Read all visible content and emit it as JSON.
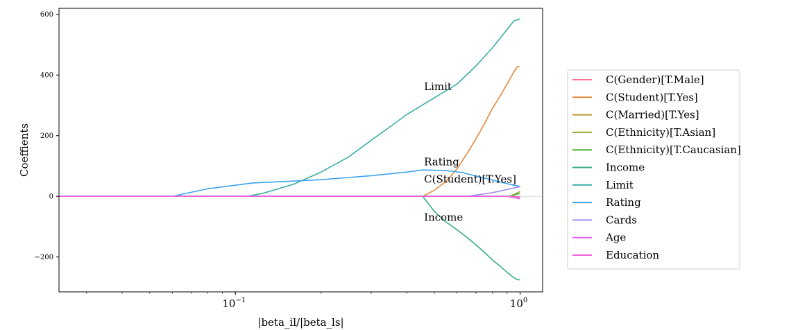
{
  "chart_data": {
    "type": "line",
    "xscale": "log",
    "xlabel": "|beta_il/|beta_ls|",
    "ylabel": "Coeffients",
    "xlim": [
      0.024,
      1.2
    ],
    "ylim": [
      -315,
      620
    ],
    "yticks": [
      -200,
      0,
      200,
      400,
      600
    ],
    "yticklabels": [
      "−200",
      "0",
      "200",
      "400",
      "600"
    ],
    "xticks": [
      0.1,
      1
    ],
    "xticklabels": [
      {
        "base": "10",
        "exp": "−1"
      },
      {
        "base": "10",
        "exp": "0"
      }
    ],
    "zero_line": true,
    "legend_position": "outside-right",
    "annotations": [
      {
        "text": "Limit",
        "x": 0.46,
        "y": 350
      },
      {
        "text": "Rating",
        "x": 0.46,
        "y": 102
      },
      {
        "text": "C(Student)[T.Yes]",
        "x": 0.46,
        "y": 45
      },
      {
        "text": "Income",
        "x": 0.46,
        "y": -81
      }
    ],
    "series": [
      {
        "name": "C(Gender)[T.Male]",
        "color": "#f77189",
        "points": [
          [
            0.024,
            0
          ],
          [
            0.9,
            0
          ],
          [
            1.0,
            -2
          ]
        ]
      },
      {
        "name": "C(Student)[T.Yes]",
        "color": "#e5873a",
        "points": [
          [
            0.024,
            0
          ],
          [
            0.455,
            0
          ],
          [
            0.5,
            20
          ],
          [
            0.55,
            50
          ],
          [
            0.6,
            90
          ],
          [
            0.65,
            140
          ],
          [
            0.7,
            190
          ],
          [
            0.75,
            240
          ],
          [
            0.8,
            290
          ],
          [
            0.85,
            330
          ],
          [
            0.9,
            370
          ],
          [
            0.95,
            410
          ],
          [
            0.98,
            428
          ],
          [
            1.0,
            428
          ]
        ]
      },
      {
        "name": "C(Married)[T.Yes]",
        "color": "#bb9832",
        "points": [
          [
            0.024,
            0
          ],
          [
            0.9,
            0
          ],
          [
            1.0,
            -5
          ]
        ]
      },
      {
        "name": "C(Ethnicity)[T.Asian]",
        "color": "#97a431",
        "points": [
          [
            0.024,
            0
          ],
          [
            0.92,
            0
          ],
          [
            1.0,
            16
          ]
        ]
      },
      {
        "name": "C(Ethnicity)[T.Caucasian]",
        "color": "#4fb031",
        "points": [
          [
            0.024,
            0
          ],
          [
            0.92,
            0
          ],
          [
            1.0,
            10
          ]
        ]
      },
      {
        "name": "Income",
        "color": "#36ad8a",
        "points": [
          [
            0.024,
            0
          ],
          [
            0.455,
            0
          ],
          [
            0.5,
            -50
          ],
          [
            0.55,
            -85
          ],
          [
            0.6,
            -110
          ],
          [
            0.65,
            -135
          ],
          [
            0.7,
            -160
          ],
          [
            0.75,
            -185
          ],
          [
            0.8,
            -210
          ],
          [
            0.85,
            -230
          ],
          [
            0.9,
            -250
          ],
          [
            0.95,
            -268
          ],
          [
            0.98,
            -275
          ],
          [
            1.0,
            -275
          ]
        ]
      },
      {
        "name": "Limit",
        "color": "#3aada6",
        "points": [
          [
            0.024,
            0
          ],
          [
            0.11,
            0
          ],
          [
            0.125,
            10
          ],
          [
            0.16,
            40
          ],
          [
            0.2,
            80
          ],
          [
            0.25,
            130
          ],
          [
            0.3,
            185
          ],
          [
            0.35,
            230
          ],
          [
            0.4,
            270
          ],
          [
            0.5,
            325
          ],
          [
            0.6,
            370
          ],
          [
            0.7,
            430
          ],
          [
            0.8,
            490
          ],
          [
            0.9,
            550
          ],
          [
            0.95,
            578
          ],
          [
            1.0,
            585
          ]
        ]
      },
      {
        "name": "Rating",
        "color": "#3ba3ec",
        "points": [
          [
            0.024,
            0
          ],
          [
            0.06,
            0
          ],
          [
            0.08,
            25
          ],
          [
            0.115,
            44
          ],
          [
            0.2,
            55
          ],
          [
            0.3,
            68
          ],
          [
            0.4,
            80
          ],
          [
            0.455,
            87
          ],
          [
            0.55,
            85
          ],
          [
            0.63,
            78
          ],
          [
            0.75,
            60
          ],
          [
            0.9,
            42
          ],
          [
            1.0,
            32
          ]
        ]
      },
      {
        "name": "Cards",
        "color": "#a38cf4",
        "points": [
          [
            0.024,
            0
          ],
          [
            0.65,
            0
          ],
          [
            0.8,
            12
          ],
          [
            1.0,
            32
          ]
        ]
      },
      {
        "name": "Age",
        "color": "#e167f3",
        "points": [
          [
            0.024,
            0
          ],
          [
            0.9,
            0
          ],
          [
            1.0,
            -8
          ]
        ]
      },
      {
        "name": "Education",
        "color": "#f461dd",
        "points": [
          [
            0.024,
            0
          ],
          [
            0.9,
            0
          ],
          [
            1.0,
            -3
          ]
        ]
      }
    ]
  }
}
